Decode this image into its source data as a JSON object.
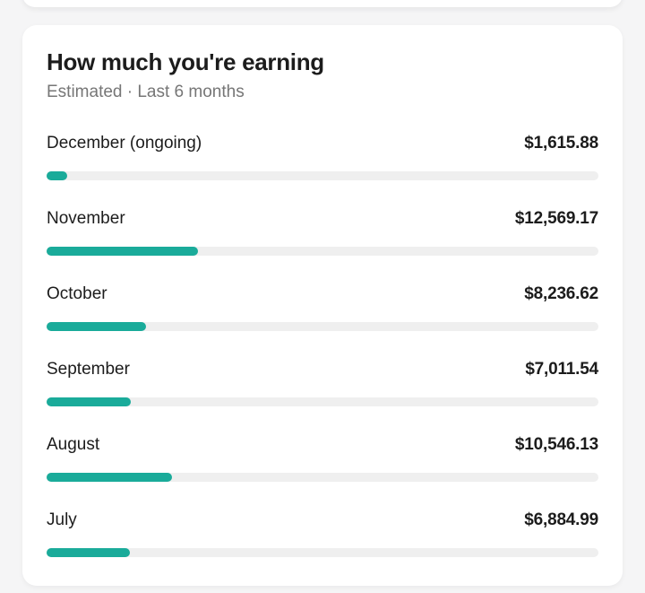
{
  "card": {
    "title": "How much you're earning",
    "subtitle": "Estimated · Last 6 months",
    "rows": [
      {
        "label": "December (ongoing)",
        "amount": "$1,615.88",
        "percent": 3.7
      },
      {
        "label": "November",
        "amount": "$12,569.17",
        "percent": 27.4
      },
      {
        "label": "October",
        "amount": "$8,236.62",
        "percent": 18.0
      },
      {
        "label": "September",
        "amount": "$7,011.54",
        "percent": 15.3
      },
      {
        "label": "August",
        "amount": "$10,546.13",
        "percent": 22.8
      },
      {
        "label": "July",
        "amount": "$6,884.99",
        "percent": 15.1
      }
    ]
  },
  "chart_data": {
    "type": "bar",
    "orientation": "horizontal",
    "title": "How much you're earning",
    "subtitle": "Estimated · Last 6 months",
    "categories": [
      "December (ongoing)",
      "November",
      "October",
      "September",
      "August",
      "July"
    ],
    "values": [
      1615.88,
      12569.17,
      8236.62,
      7011.54,
      10546.13,
      6884.99
    ],
    "value_labels": [
      "$1,615.88",
      "$12,569.17",
      "$8,236.62",
      "$7,011.54",
      "$10,546.13",
      "$6,884.99"
    ],
    "unit": "USD",
    "bar_fill_percent_of_track": [
      3.7,
      27.4,
      18.0,
      15.3,
      22.8,
      15.1
    ],
    "grid": false,
    "legend": false
  },
  "colors": {
    "accent": "#1aab9a",
    "track": "#efefef",
    "card_bg": "#ffffff",
    "page_bg": "#f5f5f6",
    "text": "#1c1c1c",
    "muted": "#767676"
  }
}
